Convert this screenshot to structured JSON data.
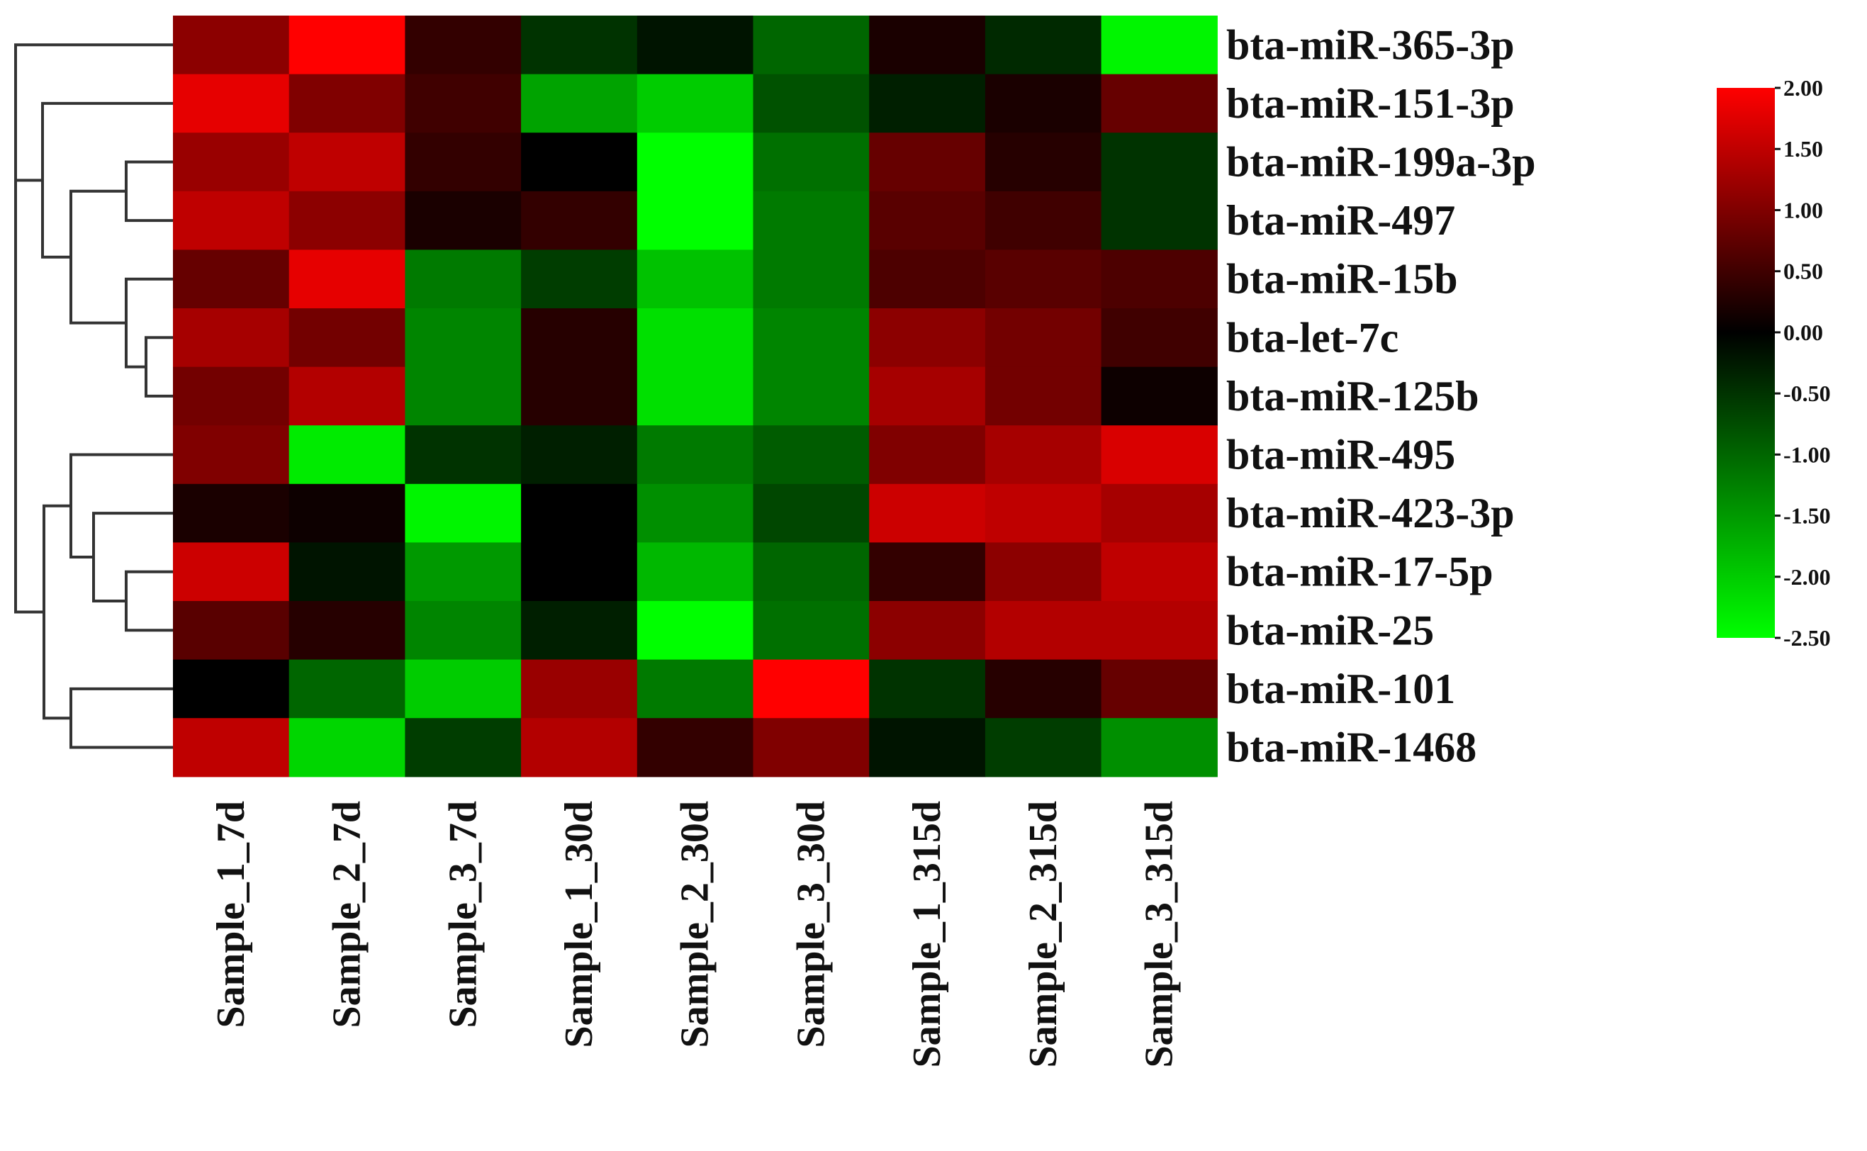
{
  "chart_data": {
    "type": "heatmap",
    "title": "",
    "xlabel": "",
    "ylabel": "",
    "columns": [
      "Sample_1_7d",
      "Sample_2_7d",
      "Sample_3_7d",
      "Sample_1_30d",
      "Sample_2_30d",
      "Sample_3_30d",
      "Sample_1_315d",
      "Sample_2_315d",
      "Sample_3_315d"
    ],
    "rows": [
      "bta-miR-365-3p",
      "bta-miR-151-3p",
      "bta-miR-199a-3p",
      "bta-miR-497",
      "bta-miR-15b",
      "bta-let-7c",
      "bta-miR-125b",
      "bta-miR-495",
      "bta-miR-423-3p",
      "bta-miR-17-5p",
      "bta-miR-25",
      "bta-miR-101",
      "bta-miR-1468"
    ],
    "values": [
      [
        1.1,
        2.0,
        0.4,
        -0.5,
        -0.2,
        -1.0,
        0.2,
        -0.4,
        -2.4
      ],
      [
        1.8,
        1.0,
        0.5,
        -1.6,
        -2.0,
        -0.8,
        -0.3,
        0.2,
        0.8
      ],
      [
        1.2,
        1.5,
        0.4,
        0.0,
        -3.0,
        -1.1,
        0.8,
        0.3,
        -0.5
      ],
      [
        1.5,
        1.1,
        0.2,
        0.4,
        -3.0,
        -1.2,
        0.7,
        0.5,
        -0.5
      ],
      [
        0.8,
        1.8,
        -1.2,
        -0.6,
        -1.9,
        -1.2,
        0.6,
        0.7,
        0.6
      ],
      [
        1.3,
        0.9,
        -1.3,
        0.3,
        -2.2,
        -1.3,
        1.1,
        0.9,
        0.5
      ],
      [
        0.9,
        1.4,
        -1.3,
        0.3,
        -2.2,
        -1.3,
        1.3,
        0.9,
        0.1
      ],
      [
        1.0,
        -2.3,
        -0.5,
        -0.3,
        -1.2,
        -0.9,
        1.0,
        1.3,
        1.7
      ],
      [
        0.2,
        0.1,
        -2.4,
        0.0,
        -1.4,
        -0.7,
        1.6,
        1.5,
        1.3
      ],
      [
        1.6,
        -0.2,
        -1.5,
        0.0,
        -1.8,
        -1.0,
        0.4,
        1.1,
        1.5
      ],
      [
        0.7,
        0.3,
        -1.3,
        -0.3,
        -2.6,
        -1.1,
        1.1,
        1.4,
        1.4
      ],
      [
        0.0,
        -1.0,
        -2.0,
        1.2,
        -1.2,
        2.0,
        -0.5,
        0.3,
        0.8
      ],
      [
        1.5,
        -2.1,
        -0.6,
        1.4,
        0.4,
        1.0,
        -0.2,
        -0.6,
        -1.4
      ]
    ],
    "colorbar": {
      "range": [
        -2.5,
        2.0
      ],
      "colors": {
        "low": "#00ff00",
        "mid": "#000000",
        "high": "#ff0000"
      },
      "ticks": [
        "2.00",
        "1.50",
        "1.00",
        "0.50",
        "0.00",
        "-0.50",
        "-1.00",
        "-1.50",
        "-2.00",
        "-2.50"
      ]
    },
    "row_dendrogram": {
      "merges": [
        [
          3,
          4,
          0.11
        ],
        [
          6,
          7,
          0.06
        ],
        [
          5,
          14,
          0.11
        ],
        [
          2,
          13,
          0.13
        ],
        [
          15,
          16,
          0.2
        ],
        [
          1,
          17,
          0.37
        ],
        [
          10,
          11,
          0.11
        ],
        [
          9,
          19,
          0.17
        ],
        [
          8,
          20,
          0.37
        ],
        [
          12,
          13,
          0.37
        ],
        [
          18,
          0,
          0.0
        ]
      ],
      "line_color": "#333333"
    }
  }
}
